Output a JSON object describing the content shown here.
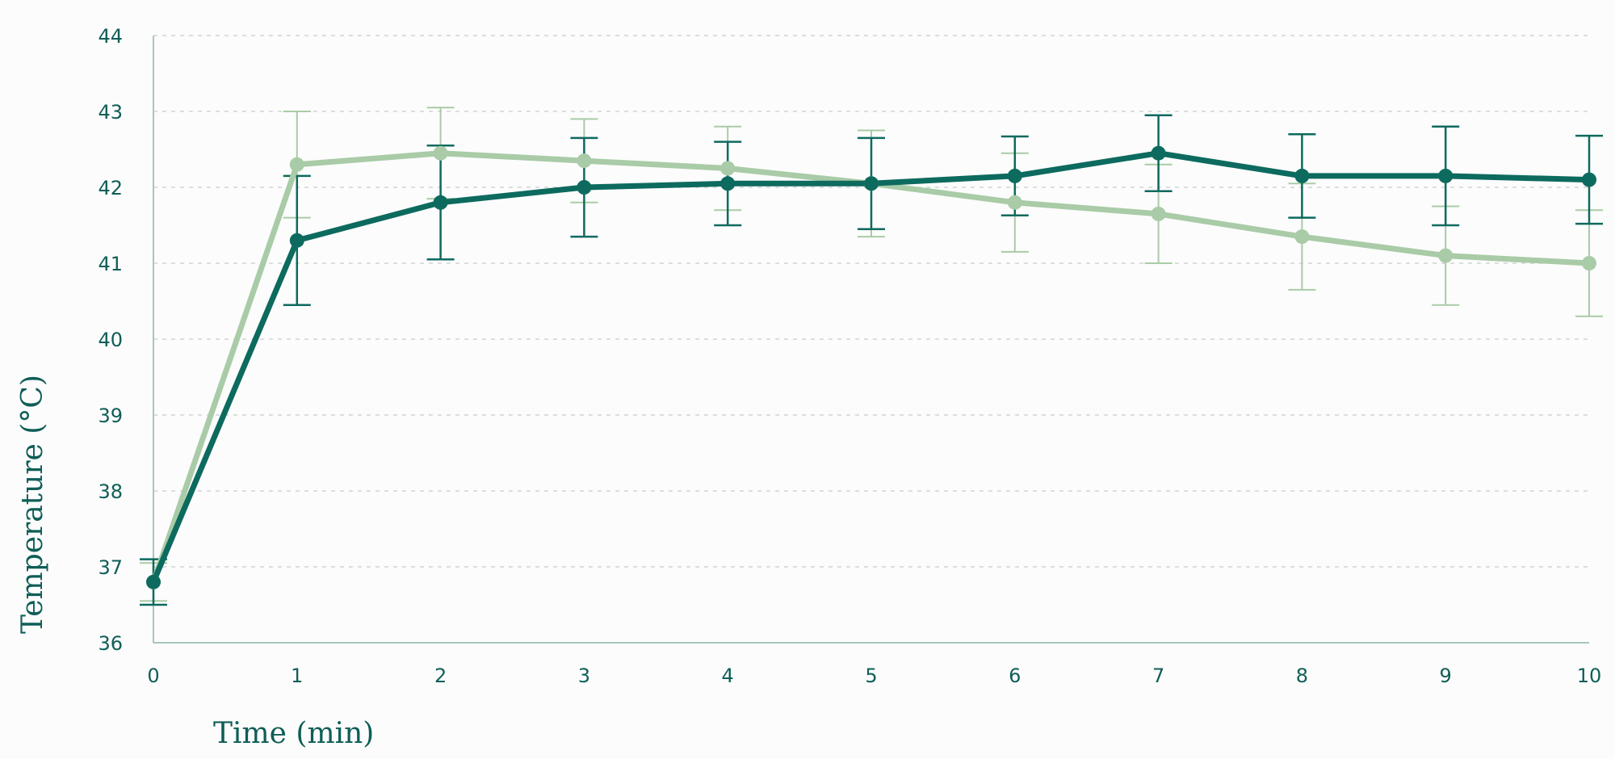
{
  "chart_data": {
    "type": "line",
    "title": "",
    "xlabel": "Time (min)",
    "ylabel": "Temperature (°C)",
    "x": [
      0,
      1,
      2,
      3,
      4,
      5,
      6,
      7,
      8,
      9,
      10
    ],
    "xlim": [
      0,
      10
    ],
    "ylim": [
      36,
      44
    ],
    "x_ticks": [
      "0",
      "1",
      "2",
      "3",
      "4",
      "5",
      "6",
      "7",
      "8",
      "9",
      "10"
    ],
    "y_ticks": [
      "36",
      "37",
      "38",
      "39",
      "40",
      "41",
      "42",
      "43",
      "44"
    ],
    "grid": "horizontal dashed",
    "legend": "none",
    "series": [
      {
        "color": "#a9cba7",
        "values": [
          36.8,
          42.3,
          42.45,
          42.35,
          42.25,
          42.05,
          41.8,
          41.65,
          41.35,
          41.1,
          41.0
        ],
        "error": [
          0.25,
          0.7,
          0.6,
          0.55,
          0.55,
          0.7,
          0.65,
          0.65,
          0.7,
          0.65,
          0.7
        ]
      },
      {
        "color": "#0d6a5e",
        "values": [
          36.8,
          41.3,
          41.8,
          42.0,
          42.05,
          42.05,
          42.15,
          42.45,
          42.15,
          42.15,
          42.1
        ],
        "error": [
          0.3,
          0.85,
          0.75,
          0.65,
          0.55,
          0.6,
          0.52,
          0.5,
          0.55,
          0.65,
          0.58
        ]
      }
    ],
    "colors": {
      "axis": "#a8c6bd",
      "grid": "#cfd4d2",
      "text": "#0f5e57"
    }
  }
}
